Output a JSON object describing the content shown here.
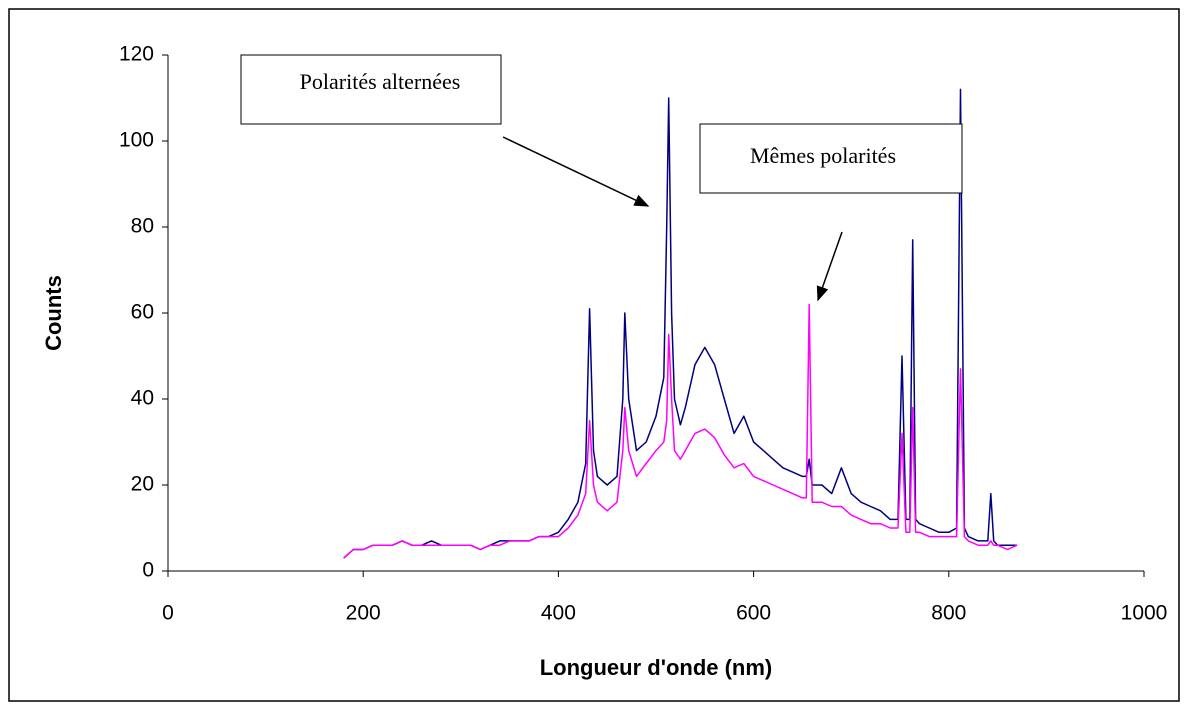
{
  "chart_data": {
    "type": "line",
    "x_label": "Longueur d'onde (nm)",
    "y_label": "Counts",
    "annotations": [
      "Polarités alternées",
      "Mêmes polarités"
    ],
    "x": [
      180,
      190,
      200,
      210,
      220,
      230,
      240,
      250,
      260,
      270,
      280,
      290,
      300,
      310,
      320,
      330,
      340,
      350,
      360,
      370,
      380,
      390,
      400,
      410,
      420,
      428,
      432,
      436,
      440,
      450,
      460,
      466,
      468,
      472,
      480,
      490,
      500,
      508,
      511,
      513,
      516,
      519,
      525,
      530,
      540,
      550,
      560,
      570,
      580,
      590,
      600,
      610,
      620,
      630,
      640,
      650,
      654,
      657,
      660,
      670,
      680,
      690,
      700,
      710,
      720,
      730,
      740,
      748,
      752,
      756,
      760,
      763,
      766,
      770,
      780,
      790,
      800,
      808,
      812,
      816,
      820,
      830,
      840,
      843,
      846,
      850,
      860,
      870
    ],
    "series": [
      {
        "name": "Polarités alternées",
        "color": "#000080",
        "values": [
          3,
          5,
          5,
          6,
          6,
          6,
          7,
          6,
          6,
          7,
          6,
          6,
          6,
          6,
          5,
          6,
          7,
          7,
          7,
          7,
          8,
          8,
          9,
          12,
          16,
          25,
          61,
          28,
          22,
          20,
          22,
          40,
          60,
          40,
          28,
          30,
          36,
          45,
          80,
          110,
          60,
          40,
          34,
          38,
          48,
          52,
          48,
          40,
          32,
          36,
          30,
          28,
          26,
          24,
          23,
          22,
          22,
          26,
          20,
          20,
          18,
          24,
          18,
          16,
          15,
          14,
          12,
          12,
          50,
          12,
          12,
          77,
          12,
          11,
          10,
          9,
          9,
          10,
          112,
          10,
          8,
          7,
          7,
          18,
          7,
          6,
          6,
          6
        ]
      },
      {
        "name": "Mêmes polarités",
        "color": "#ff00ff",
        "values": [
          3,
          5,
          5,
          6,
          6,
          6,
          7,
          6,
          6,
          6,
          6,
          6,
          6,
          6,
          5,
          6,
          6,
          7,
          7,
          7,
          8,
          8,
          8,
          10,
          13,
          18,
          35,
          20,
          16,
          14,
          16,
          28,
          38,
          28,
          22,
          25,
          28,
          30,
          35,
          55,
          40,
          28,
          26,
          28,
          32,
          33,
          31,
          27,
          24,
          25,
          22,
          21,
          20,
          19,
          18,
          17,
          17,
          62,
          16,
          16,
          15,
          15,
          13,
          12,
          11,
          11,
          10,
          10,
          32,
          9,
          9,
          38,
          9,
          9,
          8,
          8,
          8,
          8,
          47,
          8,
          7,
          6,
          6,
          7,
          6,
          6,
          5,
          6
        ]
      }
    ],
    "xlim": [
      0,
      1000
    ],
    "xticks": [
      0,
      200,
      400,
      600,
      800,
      1000
    ],
    "ylim": [
      0,
      120
    ],
    "yticks": [
      0,
      20,
      40,
      60,
      80,
      100,
      120
    ]
  }
}
